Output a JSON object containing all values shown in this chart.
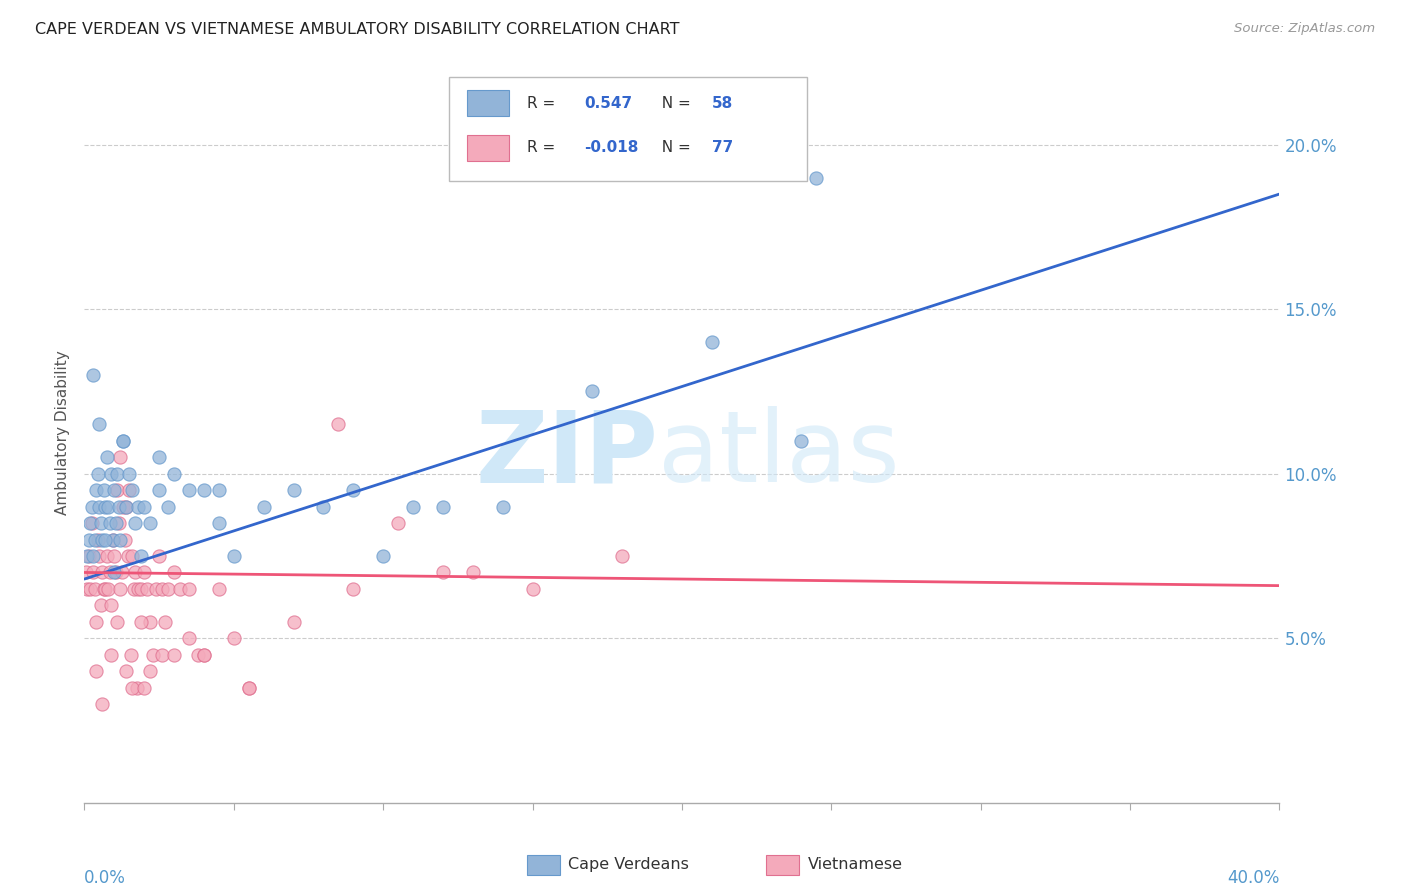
{
  "title": "CAPE VERDEAN VS VIETNAMESE AMBULATORY DISABILITY CORRELATION CHART",
  "source": "Source: ZipAtlas.com",
  "ylabel": "Ambulatory Disability",
  "right_yticks": [
    5.0,
    10.0,
    15.0,
    20.0
  ],
  "xmin": 0.0,
  "xmax": 40.0,
  "ymin": 0.0,
  "ymax": 22.5,
  "cape_verdean_color": "#92B4D8",
  "cape_verdean_edge": "#6699CC",
  "vietnamese_color": "#F4AABB",
  "vietnamese_edge": "#E07090",
  "trendline_blue": "#3366CC",
  "trendline_pink": "#EE5577",
  "legend_R_blue": "0.547",
  "legend_N_blue": "58",
  "legend_R_pink": "-0.018",
  "legend_N_pink": "77",
  "cv_trend_x0": 0.0,
  "cv_trend_y0": 6.8,
  "cv_trend_x1": 40.0,
  "cv_trend_y1": 18.5,
  "viet_trend_x0": 0.0,
  "viet_trend_y0": 7.0,
  "viet_trend_x1": 40.0,
  "viet_trend_y1": 6.6,
  "cape_verdean_x": [
    0.1,
    0.15,
    0.2,
    0.25,
    0.3,
    0.35,
    0.4,
    0.45,
    0.5,
    0.55,
    0.6,
    0.65,
    0.7,
    0.75,
    0.8,
    0.85,
    0.9,
    0.95,
    1.0,
    1.05,
    1.1,
    1.15,
    1.2,
    1.3,
    1.4,
    1.5,
    1.6,
    1.7,
    1.8,
    1.9,
    2.0,
    2.2,
    2.5,
    2.8,
    3.0,
    3.5,
    4.0,
    4.5,
    5.0,
    6.0,
    7.0,
    8.0,
    9.0,
    10.0,
    11.0,
    12.0,
    14.0,
    17.0,
    21.0,
    24.0,
    0.3,
    0.5,
    0.7,
    1.0,
    1.3,
    2.5,
    4.5,
    24.5
  ],
  "cape_verdean_y": [
    7.5,
    8.0,
    8.5,
    9.0,
    7.5,
    8.0,
    9.5,
    10.0,
    9.0,
    8.5,
    8.0,
    9.5,
    9.0,
    10.5,
    9.0,
    8.5,
    10.0,
    8.0,
    9.5,
    8.5,
    10.0,
    9.0,
    8.0,
    11.0,
    9.0,
    10.0,
    9.5,
    8.5,
    9.0,
    7.5,
    9.0,
    8.5,
    9.5,
    9.0,
    10.0,
    9.5,
    9.5,
    9.5,
    7.5,
    9.0,
    9.5,
    9.0,
    9.5,
    7.5,
    9.0,
    9.0,
    9.0,
    12.5,
    14.0,
    11.0,
    13.0,
    11.5,
    8.0,
    7.0,
    11.0,
    10.5,
    8.5,
    19.0
  ],
  "vietnamese_x": [
    0.05,
    0.1,
    0.15,
    0.2,
    0.25,
    0.3,
    0.35,
    0.4,
    0.45,
    0.5,
    0.55,
    0.6,
    0.65,
    0.7,
    0.75,
    0.8,
    0.85,
    0.9,
    0.95,
    1.0,
    1.05,
    1.1,
    1.15,
    1.2,
    1.25,
    1.3,
    1.35,
    1.4,
    1.45,
    1.5,
    1.55,
    1.6,
    1.65,
    1.7,
    1.75,
    1.8,
    1.9,
    2.0,
    2.1,
    2.2,
    2.3,
    2.4,
    2.5,
    2.6,
    2.7,
    2.8,
    3.0,
    3.2,
    3.5,
    3.8,
    4.0,
    4.5,
    5.5,
    7.0,
    9.0,
    10.5,
    13.0,
    15.0,
    18.0,
    0.4,
    0.6,
    0.9,
    1.1,
    1.4,
    1.6,
    1.9,
    2.2,
    2.6,
    3.0,
    4.0,
    5.0,
    5.5,
    8.5,
    12.0,
    3.5,
    2.0,
    1.2
  ],
  "vietnamese_y": [
    7.0,
    6.5,
    7.5,
    6.5,
    8.5,
    7.0,
    6.5,
    5.5,
    8.0,
    7.5,
    6.0,
    7.0,
    6.5,
    6.5,
    7.5,
    6.5,
    7.0,
    6.0,
    8.0,
    7.5,
    7.0,
    9.5,
    8.5,
    6.5,
    7.0,
    9.0,
    8.0,
    9.0,
    7.5,
    9.5,
    4.5,
    7.5,
    6.5,
    7.0,
    3.5,
    6.5,
    6.5,
    7.0,
    6.5,
    5.5,
    4.5,
    6.5,
    7.5,
    6.5,
    5.5,
    6.5,
    7.0,
    6.5,
    5.0,
    4.5,
    4.5,
    6.5,
    3.5,
    5.5,
    6.5,
    8.5,
    7.0,
    6.5,
    7.5,
    4.0,
    3.0,
    4.5,
    5.5,
    4.0,
    3.5,
    5.5,
    4.0,
    4.5,
    4.5,
    4.5,
    5.0,
    3.5,
    11.5,
    7.0,
    6.5,
    3.5,
    10.5
  ]
}
